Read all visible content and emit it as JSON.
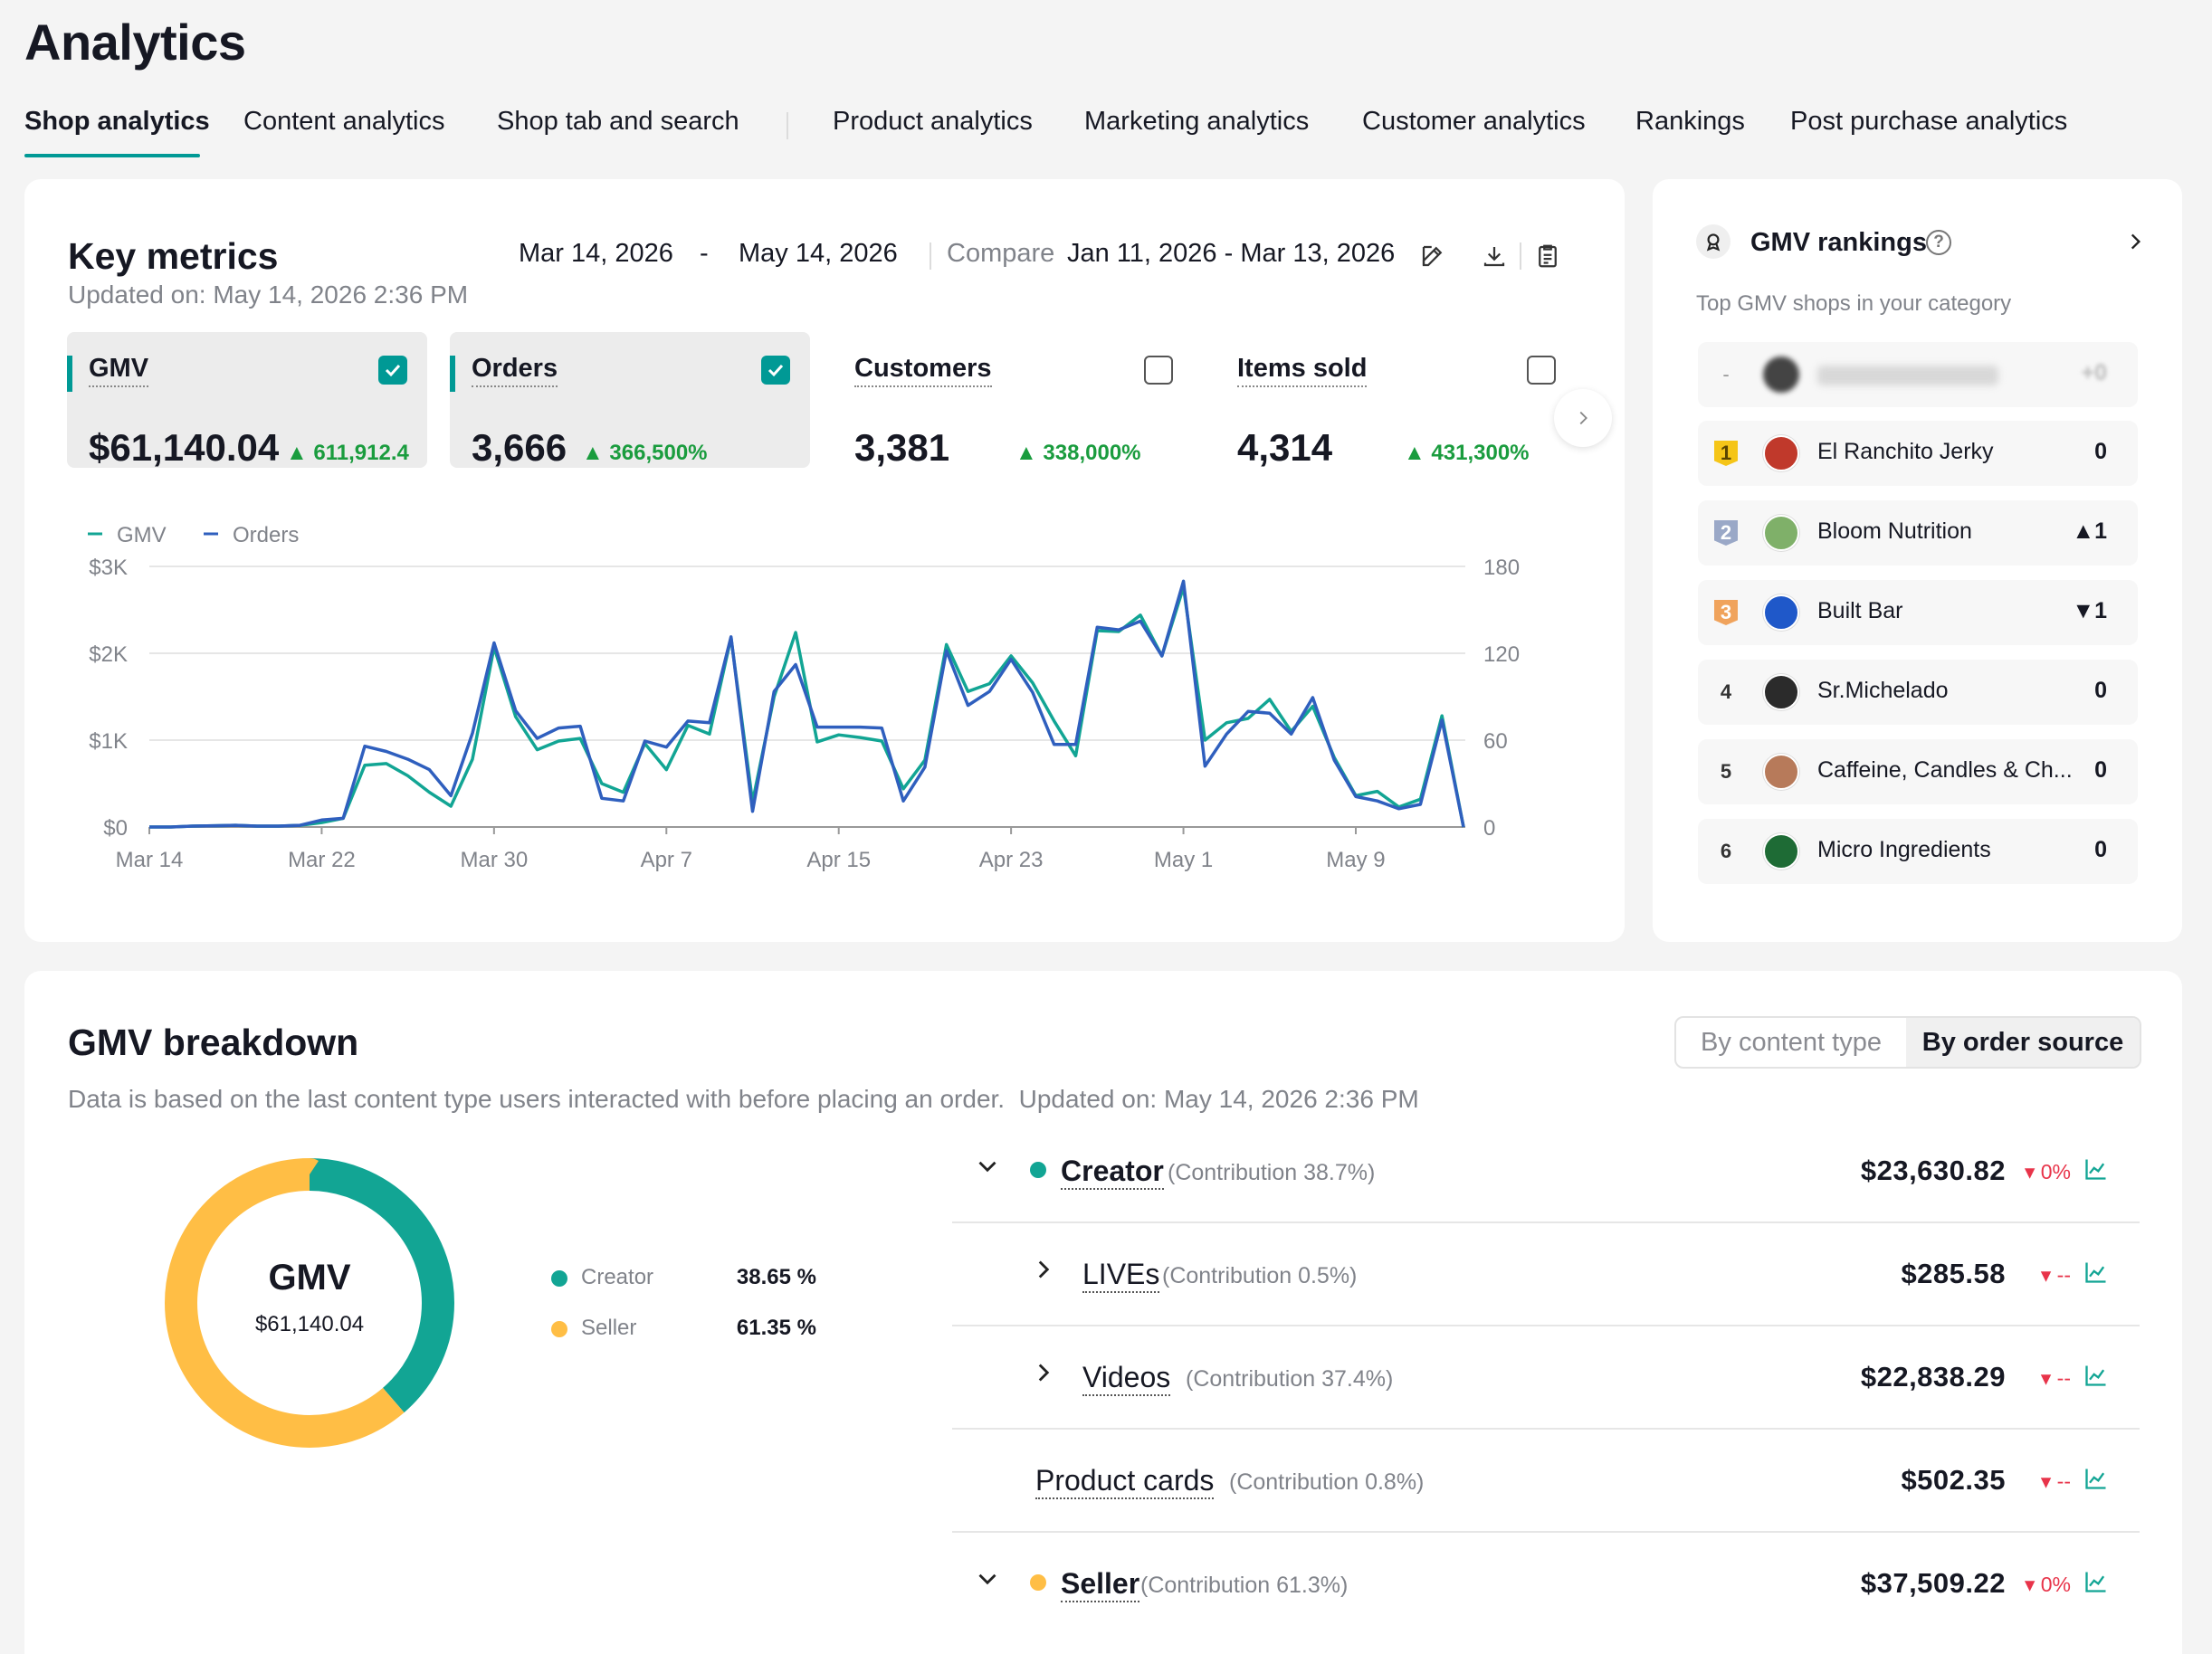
{
  "page": {
    "title": "Analytics"
  },
  "tabs": [
    {
      "label": "Shop analytics",
      "active": true
    },
    {
      "label": "Content analytics"
    },
    {
      "label": "Shop tab and search"
    },
    {
      "label": "Product analytics"
    },
    {
      "label": "Marketing analytics"
    },
    {
      "label": "Customer analytics"
    },
    {
      "label": "Rankings"
    },
    {
      "label": "Post purchase analytics"
    }
  ],
  "key_metrics": {
    "title": "Key metrics",
    "updated": "Updated on: May 14, 2026 2:36 PM",
    "date_start": "Mar 14, 2026",
    "date_sep": "-",
    "date_end": "May 14, 2026",
    "compare_label": "Compare",
    "compare_range": "Jan 11, 2026 - Mar 13, 2026",
    "cards": [
      {
        "label": "GMV",
        "value": "$61,140.04",
        "change": "611,912.4",
        "checked": true
      },
      {
        "label": "Orders",
        "value": "3,666",
        "change": "366,500%",
        "checked": true
      },
      {
        "label": "Customers",
        "value": "3,381",
        "change": "338,000%",
        "checked": false
      },
      {
        "label": "Items sold",
        "value": "4,314",
        "change": "431,300%",
        "checked": false
      }
    ]
  },
  "chart_data": {
    "type": "line",
    "legend": [
      "GMV",
      "Orders"
    ],
    "x_ticks": [
      "Mar 14",
      "Mar 22",
      "Mar 30",
      "Apr 7",
      "Apr 15",
      "Apr 23",
      "May 1",
      "May 9"
    ],
    "y_left_ticks": [
      "$3K",
      "$2K",
      "$1K",
      "$0"
    ],
    "y_right_ticks": [
      "180",
      "120",
      "60",
      "0"
    ],
    "y_left_range": [
      0,
      3000
    ],
    "y_right_range": [
      0,
      180
    ],
    "colors": {
      "GMV": "#12a594",
      "Orders": "#2f5fbe"
    },
    "series": [
      {
        "name": "GMV",
        "axis": "left",
        "values": [
          0,
          0,
          10,
          15,
          20,
          10,
          10,
          20,
          50,
          100,
          710,
          730,
          590,
          400,
          240,
          780,
          2070,
          1270,
          890,
          990,
          1020,
          500,
          400,
          960,
          660,
          1170,
          1070,
          2180,
          290,
          1500,
          2240,
          980,
          1060,
          1030,
          990,
          440,
          770,
          2100,
          1560,
          1650,
          1970,
          1660,
          1220,
          820,
          2260,
          2250,
          2440,
          1970,
          2760,
          1000,
          1200,
          1250,
          1470,
          1100,
          1390,
          800,
          360,
          410,
          230,
          320,
          1280,
          0
        ]
      },
      {
        "name": "Orders",
        "axis": "left",
        "values": [
          0,
          0,
          10,
          15,
          20,
          10,
          10,
          20,
          80,
          100,
          930,
          870,
          780,
          660,
          360,
          1080,
          2120,
          1340,
          1020,
          1140,
          1160,
          330,
          300,
          990,
          920,
          1220,
          1200,
          2190,
          180,
          1560,
          1870,
          1150,
          1150,
          1150,
          1140,
          300,
          690,
          2030,
          1400,
          1560,
          1930,
          1550,
          950,
          950,
          2300,
          2270,
          2370,
          1970,
          2830,
          700,
          1070,
          1330,
          1310,
          1070,
          1490,
          770,
          350,
          300,
          210,
          260,
          1230,
          0
        ]
      }
    ]
  },
  "rankings": {
    "title": "GMV rankings",
    "subtitle": "Top GMV shops in your category",
    "you_rank": "-",
    "you_change": "+0",
    "items": [
      {
        "rank": "1",
        "name": "El Ranchito Jerky",
        "change": "0",
        "badge_color": "#f5c518",
        "logo_color": "#c0392b"
      },
      {
        "rank": "2",
        "name": "Bloom Nutrition",
        "change": "▲1",
        "badge_color": "#9aa8c7",
        "logo_color": "#7fb069"
      },
      {
        "rank": "3",
        "name": "Built Bar",
        "change": "▼1",
        "badge_color": "#f0a35c",
        "logo_color": "#1f58c9"
      },
      {
        "rank": "4",
        "name": "Sr.Michelado",
        "change": "0",
        "logo_color": "#2b2b2b"
      },
      {
        "rank": "5",
        "name": "Caffeine, Candles & Ch...",
        "change": "0",
        "logo_color": "#b77a5a"
      },
      {
        "rank": "6",
        "name": "Micro Ingredients",
        "change": "0",
        "logo_color": "#1e6b35"
      }
    ]
  },
  "breakdown": {
    "title": "GMV breakdown",
    "note": "Data is based on the last content type users interacted with before placing an order.",
    "updated": "Updated on: May 14, 2026 2:36 PM",
    "toggle": [
      "By content type",
      "By order source"
    ],
    "toggle_active": 1,
    "donut": {
      "label": "GMV",
      "value": "$61,140.04",
      "segments": [
        {
          "name": "Creator",
          "percent": 38.65,
          "display": "38.65 %",
          "color": "#12a594"
        },
        {
          "name": "Seller",
          "percent": 61.35,
          "display": "61.35 %",
          "color": "#ffbe45"
        }
      ]
    },
    "rows": [
      {
        "name": "Creator",
        "contribution": "(Contribution 38.7%)",
        "amount": "$23,630.82",
        "change": "0%",
        "level": 0,
        "chevron": "down",
        "dot": "#12a594"
      },
      {
        "name": "LIVEs",
        "contribution": "(Contribution 0.5%)",
        "amount": "$285.58",
        "change": "--",
        "level": 1,
        "chevron": "right"
      },
      {
        "name": "Videos",
        "contribution": "(Contribution 37.4%)",
        "amount": "$22,838.29",
        "change": "--",
        "level": 1,
        "chevron": "right"
      },
      {
        "name": "Product cards",
        "contribution": "(Contribution 0.8%)",
        "amount": "$502.35",
        "change": "--",
        "level": 1,
        "chevron": "none"
      },
      {
        "name": "Seller",
        "contribution": "(Contribution 61.3%)",
        "amount": "$37,509.22",
        "change": "0%",
        "level": 0,
        "chevron": "down",
        "dot": "#ffbe45"
      }
    ]
  }
}
